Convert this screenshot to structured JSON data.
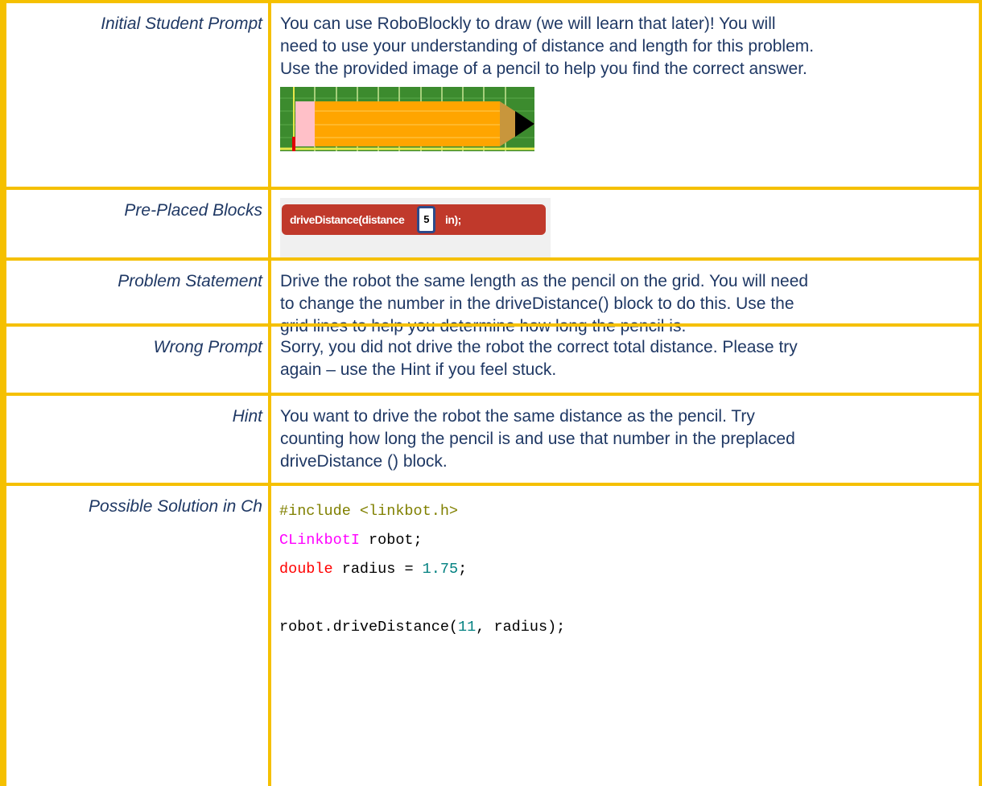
{
  "rows": [
    {
      "label": "Initial Student Prompt",
      "lines": [
        "You can use RoboBlockly to draw (we will learn that later)! You will",
        "need to use your understanding of distance and length for this problem.",
        "Use the provided image of a pencil to help you find the correct answer."
      ]
    },
    {
      "label": "Pre-Placed Blocks",
      "block": {
        "call": "driveDistance(distance",
        "value": 5,
        "unit": "in);"
      }
    },
    {
      "label": "Problem Statement",
      "lines": [
        "Drive the robot the same length as the pencil on the grid. You will need",
        "to change the number in the driveDistance() block to do this. Use the",
        "grid lines to help you determine how long the pencil is."
      ]
    },
    {
      "label": "Wrong Prompt",
      "lines": [
        "Sorry, you did not drive the robot the correct total distance. Please try",
        "again – use the Hint if you feel stuck."
      ]
    },
    {
      "label": "Hint",
      "lines": [
        "You want to drive the robot the same distance as the pencil. Try",
        "counting how long the pencil is and use that number in the preplaced",
        "driveDistance () block."
      ]
    },
    {
      "label": "Possible Solution in Ch",
      "code": [
        [
          [
            {
              "text": "#include <linkbot.h>",
              "color": "#808000"
            }
          ],
          [
            {
              "text": "CLinkbotI",
              "color": "#ff00ff"
            },
            {
              "text": " robot;",
              "color": "#000000"
            }
          ],
          [
            {
              "text": "double",
              "color": "#ff0000"
            },
            {
              "text": " radius = ",
              "color": "#000000"
            },
            {
              "text": "1.75",
              "color": "#008080"
            },
            {
              "text": ";",
              "color": "#000000"
            }
          ]
        ],
        [
          [
            {
              "text": "robot.driveDistance(",
              "color": "#000000"
            },
            {
              "text": "11",
              "color": "#008080"
            },
            {
              "text": ", radius);",
              "color": "#000000"
            }
          ]
        ]
      ]
    }
  ]
}
